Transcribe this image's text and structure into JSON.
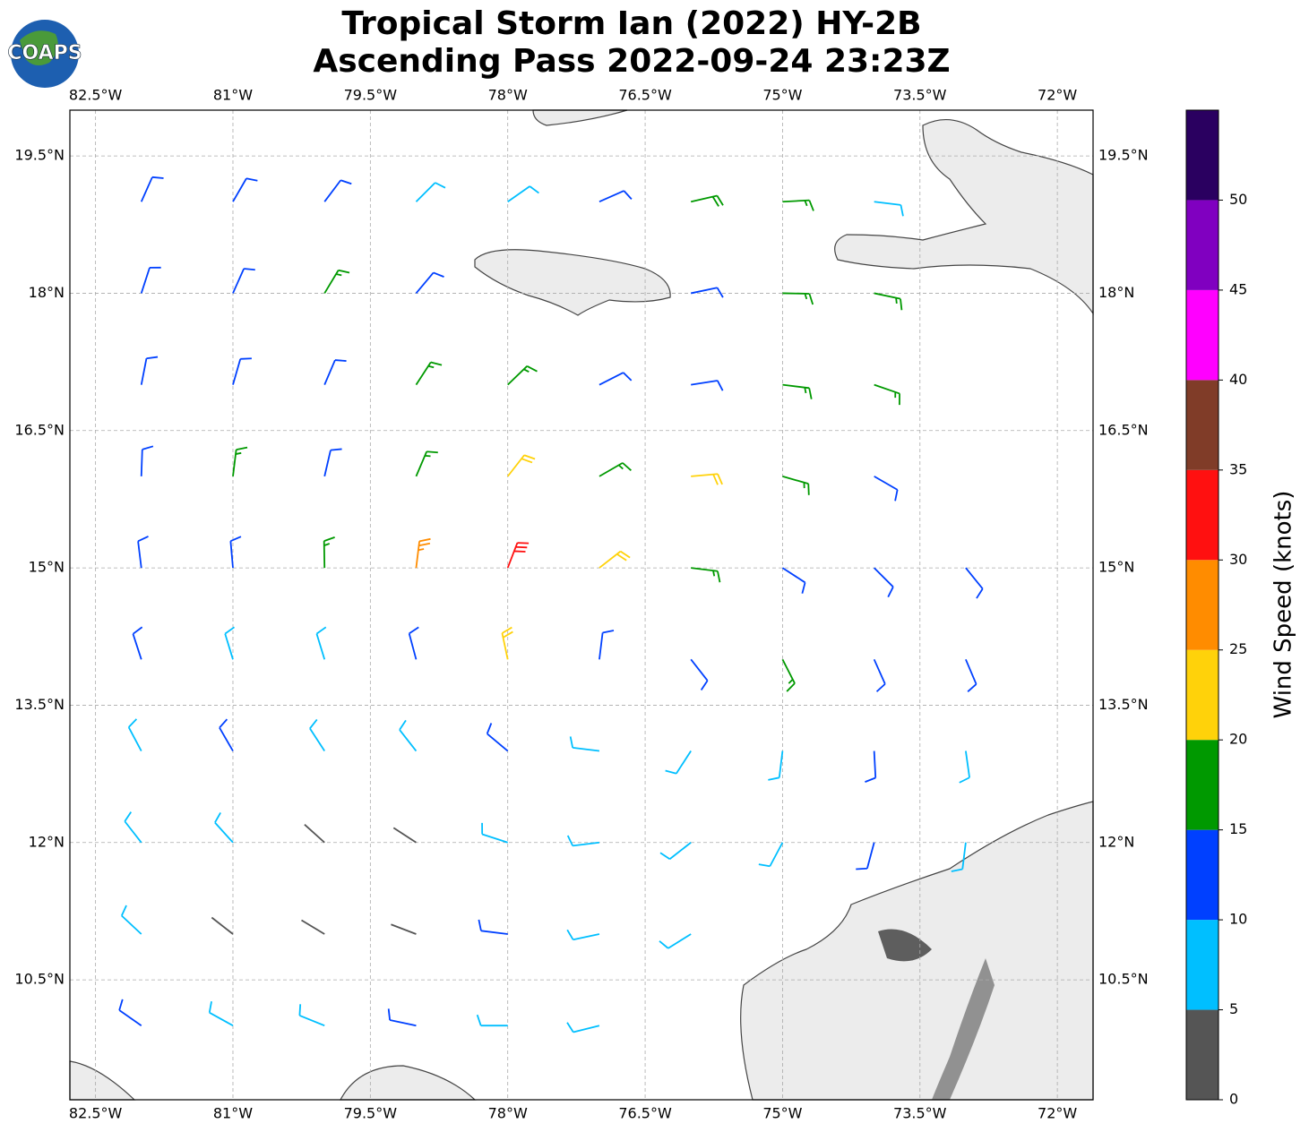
{
  "chart_data": {
    "type": "wind_barbs",
    "title": [
      "Tropical Storm Ian (2022) HY-2B",
      "Ascending Pass 2022-09-24 23:23Z"
    ],
    "logo_text": "COAPS",
    "xlim": [
      -82.78,
      -71.61
    ],
    "ylim": [
      9.19,
      20.0
    ],
    "xticks": [
      {
        "value": -82.5,
        "label": "82.5°W"
      },
      {
        "value": -81,
        "label": "81°W"
      },
      {
        "value": -79.5,
        "label": "79.5°W"
      },
      {
        "value": -78,
        "label": "78°W"
      },
      {
        "value": -76.5,
        "label": "76.5°W"
      },
      {
        "value": -75,
        "label": "75°W"
      },
      {
        "value": -73.5,
        "label": "73.5°W"
      },
      {
        "value": -72,
        "label": "72°W"
      }
    ],
    "yticks": [
      {
        "value": 10.5,
        "label": "10.5°N"
      },
      {
        "value": 12,
        "label": "12°N"
      },
      {
        "value": 13.5,
        "label": "13.5°N"
      },
      {
        "value": 15,
        "label": "15°N"
      },
      {
        "value": 16.5,
        "label": "16.5°N"
      },
      {
        "value": 18,
        "label": "18°N"
      },
      {
        "value": 19.5,
        "label": "19.5°N"
      }
    ],
    "grid": true,
    "barbs": {
      "lon": [
        -82,
        -81,
        -80,
        -79,
        -78,
        -77,
        -76,
        -75,
        -74,
        -82,
        -81,
        -80,
        -79,
        -76,
        -75,
        -74,
        -82,
        -81,
        -80,
        -79,
        -78,
        -77,
        -76,
        -75,
        -74,
        -82,
        -81,
        -80,
        -79,
        -78,
        -77,
        -76,
        -75,
        -74,
        -82,
        -81,
        -80,
        -79,
        -78,
        -77,
        -76,
        -75,
        -74,
        -73,
        -82,
        -81,
        -80,
        -79,
        -78,
        -77,
        -76,
        -75,
        -74,
        -73,
        -82,
        -81,
        -80,
        -79,
        -78,
        -77,
        -76,
        -75,
        -74,
        -73,
        -82,
        -81,
        -80,
        -79,
        -78,
        -77,
        -76,
        -75,
        -74,
        -73,
        -82,
        -81,
        -80,
        -79,
        -78,
        -77,
        -76,
        -82,
        -81,
        -80,
        -79,
        -78,
        -77
      ],
      "lat": [
        19,
        19,
        19,
        19,
        19,
        19,
        19,
        19,
        19,
        18,
        18,
        18,
        18,
        18,
        18,
        18,
        17,
        17,
        17,
        17,
        17,
        17,
        17,
        17,
        17,
        16,
        16,
        16,
        16,
        16,
        16,
        16,
        16,
        16,
        15,
        15,
        15,
        15,
        15,
        15,
        15,
        15,
        15,
        15,
        14,
        14,
        14,
        14,
        14,
        14,
        14,
        14,
        14,
        14,
        13,
        13,
        13,
        13,
        13,
        13,
        13,
        13,
        13,
        13,
        12,
        12,
        12,
        12,
        12,
        12,
        12,
        12,
        12,
        12,
        11,
        11,
        11,
        11,
        11,
        11,
        11,
        10,
        10,
        10,
        10,
        10,
        10
      ],
      "speed": [
        12,
        12,
        12,
        8,
        8,
        12,
        18,
        15,
        8,
        12,
        12,
        17,
        12,
        12,
        17,
        17,
        12,
        12,
        12,
        17,
        17,
        12,
        12,
        17,
        17,
        12,
        17,
        12,
        17,
        22,
        17,
        22,
        17,
        12,
        12,
        12,
        17,
        27,
        32,
        22,
        17,
        12,
        12,
        12,
        12,
        8,
        8,
        12,
        22,
        12,
        12,
        17,
        12,
        12,
        8,
        12,
        8,
        8,
        12,
        8,
        8,
        8,
        12,
        8,
        8,
        8,
        3,
        3,
        8,
        8,
        8,
        8,
        12,
        8,
        8,
        3,
        3,
        3,
        12,
        8,
        8,
        12,
        8,
        8,
        12,
        8,
        8
      ],
      "direction": [
        24,
        30,
        37,
        45,
        55,
        66,
        77,
        87,
        97,
        18,
        24,
        31,
        40,
        78,
        91,
        102,
        11,
        16,
        23,
        33,
        46,
        63,
        81,
        97,
        109,
        2,
        7,
        13,
        23,
        38,
        60,
        85,
        106,
        120,
        353,
        355,
        359,
        7,
        21,
        52,
        97,
        123,
        135,
        141,
        342,
        343,
        343,
        345,
        348,
        7,
        142,
        153,
        156,
        157,
        332,
        330,
        327,
        322,
        310,
        277,
        213,
        187,
        177,
        172,
        322,
        318,
        312,
        303,
        288,
        263,
        232,
        208,
        195,
        187,
        313,
        308,
        301,
        291,
        277,
        258,
        238,
        305,
        299,
        292,
        282,
        270,
        256
      ]
    },
    "colorbar": {
      "label": "Wind Speed (knots)",
      "bins": [
        0,
        5,
        10,
        15,
        20,
        25,
        30,
        35,
        40,
        45,
        50,
        55
      ],
      "colors": [
        "#555555",
        "#00bfff",
        "#0040ff",
        "#009900",
        "#ffd20a",
        "#ff8c00",
        "#ff1010",
        "#803c28",
        "#ff00ff",
        "#8000c0",
        "#2a0060"
      ],
      "ticks": [
        0,
        5,
        10,
        15,
        20,
        25,
        30,
        35,
        40,
        45,
        50
      ]
    }
  }
}
